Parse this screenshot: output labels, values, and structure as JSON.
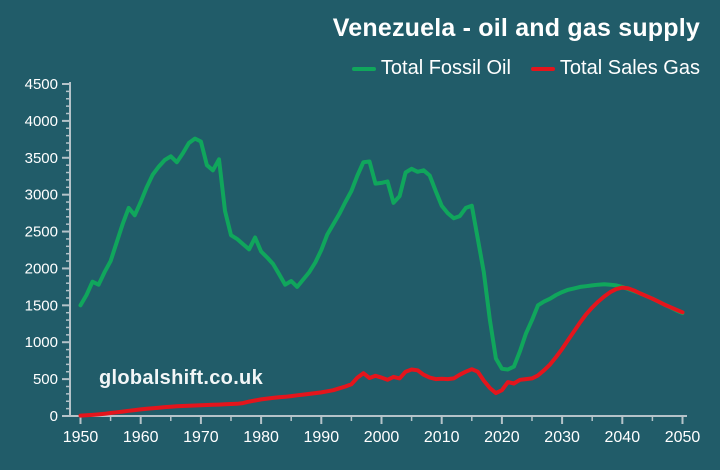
{
  "header": {
    "title": "Venezuela - oil and gas supply"
  },
  "watermark": {
    "text": "globalshift.co.uk"
  },
  "colors": {
    "background": "#215c69",
    "axis": "#b5c3c9",
    "text": "#ffffff",
    "fossil_oil": "#10a65c",
    "sales_gas": "#e4151c"
  },
  "chart_data": {
    "type": "line",
    "title": "Venezuela - oil and gas supply",
    "xlabel": "",
    "ylabel": "",
    "xlim": [
      1950,
      2050
    ],
    "xtick_major": 10,
    "xtick_minor": 5,
    "ylim": [
      0,
      4500
    ],
    "ytick_major": 500,
    "ytick_minor": 100,
    "grid": false,
    "legend_position": "top-right",
    "x": [
      1950,
      1951,
      1952,
      1953,
      1954,
      1955,
      1956,
      1957,
      1958,
      1959,
      1960,
      1961,
      1962,
      1963,
      1964,
      1965,
      1966,
      1967,
      1968,
      1969,
      1970,
      1971,
      1972,
      1973,
      1974,
      1975,
      1976,
      1977,
      1978,
      1979,
      1980,
      1981,
      1982,
      1983,
      1984,
      1985,
      1986,
      1987,
      1988,
      1989,
      1990,
      1991,
      1992,
      1993,
      1994,
      1995,
      1996,
      1997,
      1998,
      1999,
      2000,
      2001,
      2002,
      2003,
      2004,
      2005,
      2006,
      2007,
      2008,
      2009,
      2010,
      2011,
      2012,
      2013,
      2014,
      2015,
      2016,
      2017,
      2018,
      2019,
      2020,
      2021,
      2022,
      2023,
      2024,
      2025,
      2026,
      2027,
      2028,
      2029,
      2030,
      2031,
      2032,
      2033,
      2034,
      2035,
      2036,
      2037,
      2038,
      2039,
      2040,
      2041,
      2042,
      2043,
      2044,
      2045,
      2046,
      2047,
      2048,
      2049,
      2050
    ],
    "series": [
      {
        "name": "Total Fossil Oil",
        "color": "#10a65c",
        "values": [
          1500,
          1640,
          1820,
          1780,
          1950,
          2100,
          2350,
          2600,
          2820,
          2720,
          2900,
          3100,
          3270,
          3380,
          3470,
          3520,
          3440,
          3560,
          3700,
          3760,
          3720,
          3400,
          3330,
          3480,
          2780,
          2450,
          2400,
          2330,
          2260,
          2420,
          2230,
          2150,
          2060,
          1920,
          1780,
          1830,
          1750,
          1850,
          1950,
          2080,
          2250,
          2460,
          2600,
          2740,
          2900,
          3050,
          3260,
          3440,
          3450,
          3150,
          3160,
          3180,
          2890,
          2980,
          3300,
          3350,
          3310,
          3330,
          3260,
          3050,
          2850,
          2750,
          2680,
          2710,
          2820,
          2850,
          2400,
          1950,
          1300,
          780,
          640,
          630,
          670,
          880,
          1120,
          1300,
          1500,
          1550,
          1590,
          1640,
          1680,
          1710,
          1730,
          1750,
          1760,
          1770,
          1780,
          1785,
          1780,
          1770,
          1750,
          1720,
          1690,
          1660,
          1625,
          1590,
          1550,
          1510,
          1470,
          1430,
          1395
        ]
      },
      {
        "name": "Total Sales Gas",
        "color": "#e4151c",
        "values": [
          5,
          10,
          15,
          22,
          30,
          40,
          50,
          60,
          70,
          80,
          90,
          98,
          105,
          112,
          120,
          126,
          131,
          135,
          138,
          142,
          145,
          149,
          152,
          155,
          158,
          162,
          166,
          175,
          195,
          210,
          225,
          236,
          245,
          253,
          260,
          270,
          280,
          290,
          300,
          310,
          320,
          335,
          350,
          375,
          400,
          430,
          520,
          580,
          515,
          545,
          520,
          490,
          530,
          510,
          600,
          630,
          620,
          560,
          520,
          500,
          505,
          500,
          510,
          560,
          600,
          635,
          600,
          480,
          380,
          310,
          350,
          460,
          440,
          490,
          500,
          510,
          550,
          620,
          700,
          800,
          910,
          1030,
          1150,
          1270,
          1380,
          1470,
          1550,
          1620,
          1680,
          1720,
          1740,
          1730,
          1700,
          1660,
          1625,
          1590,
          1550,
          1510,
          1475,
          1440,
          1405
        ]
      }
    ]
  }
}
